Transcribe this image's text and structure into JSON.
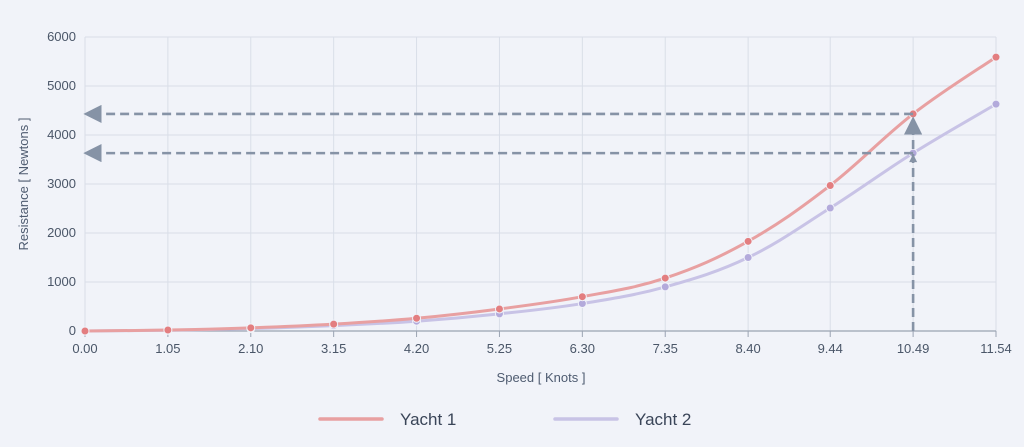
{
  "chart_data": {
    "type": "line",
    "xlabel": "Speed [ Knots ]",
    "ylabel": "Resistance [ Newtons ]",
    "x": [
      0.0,
      1.05,
      2.1,
      3.15,
      4.2,
      5.25,
      6.3,
      7.35,
      8.4,
      9.44,
      10.49,
      11.54
    ],
    "x_tick_labels": [
      "0.00",
      "1.05",
      "2.10",
      "3.15",
      "4.20",
      "5.25",
      "6.30",
      "7.35",
      "8.40",
      "9.44",
      "10.49",
      "11.54"
    ],
    "y_ticks": [
      0,
      1000,
      2000,
      3000,
      4000,
      5000,
      6000
    ],
    "y_tick_labels": [
      "0",
      "1000",
      "2000",
      "3000",
      "4000",
      "5000",
      "6000"
    ],
    "ylim": [
      0,
      6000
    ],
    "grid": true,
    "legend_position": "bottom-center",
    "series": [
      {
        "name": "Yacht 1",
        "color": "#e8a0a1",
        "marker_color": "#e37e80",
        "values": [
          0,
          20,
          65,
          140,
          260,
          450,
          700,
          1080,
          1830,
          2970,
          4430,
          5590
        ]
      },
      {
        "name": "Yacht 2",
        "color": "#c8c3e6",
        "marker_color": "#b3aadb",
        "values": [
          0,
          15,
          50,
          110,
          200,
          350,
          560,
          900,
          1500,
          2510,
          3630,
          4630
        ]
      }
    ],
    "annotations": [
      {
        "type": "arrow-vertical",
        "x": 10.49,
        "y_from": 0,
        "y_to": 4430,
        "color": "#8693a6"
      },
      {
        "type": "arrow-horizontal",
        "y": 4430,
        "x_from": 10.49,
        "x_to": 0,
        "color": "#8693a6"
      },
      {
        "type": "arrow-horizontal",
        "y": 3630,
        "x_from": 10.49,
        "x_to": 0,
        "color": "#8693a6"
      }
    ]
  }
}
